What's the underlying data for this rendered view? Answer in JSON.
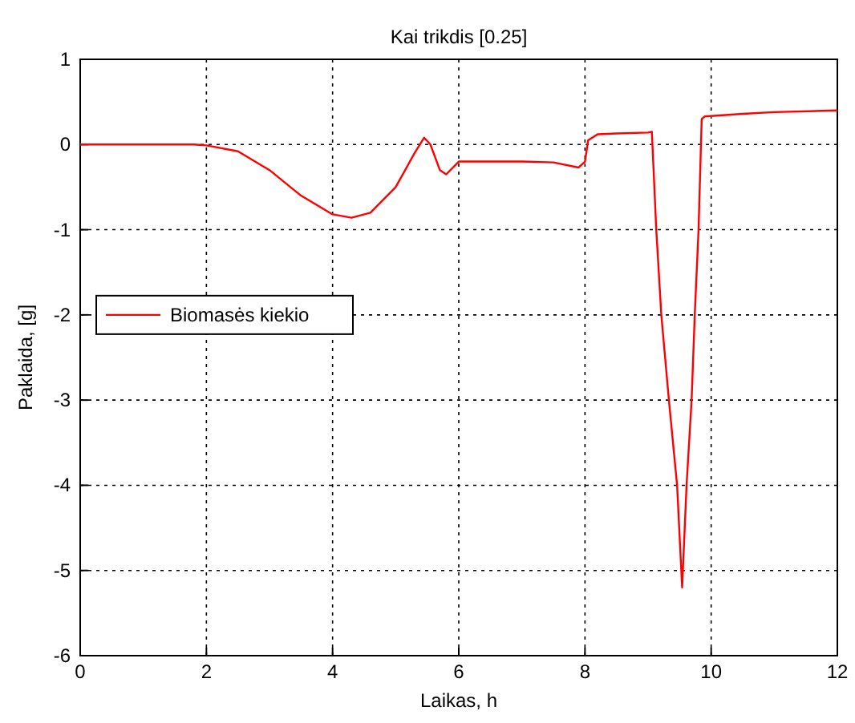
{
  "chart_data": {
    "type": "line",
    "title": "Kai trikdis [0.25]",
    "xlabel": "Laikas, h",
    "ylabel": "Paklaida, [g]",
    "xlim": [
      0,
      12
    ],
    "ylim": [
      -6,
      1
    ],
    "xticks": [
      0,
      2,
      4,
      6,
      8,
      10,
      12
    ],
    "yticks": [
      -6,
      -5,
      -4,
      -3,
      -2,
      -1,
      0,
      1
    ],
    "grid": true,
    "legend": "left",
    "series": [
      {
        "name": "Biomasės kiekio",
        "color": "#ff0000",
        "x": [
          0,
          1.8,
          2,
          2.5,
          3,
          3.5,
          4,
          4.3,
          4.6,
          5,
          5.3,
          5.45,
          5.55,
          5.7,
          5.8,
          6,
          6.5,
          7,
          7.5,
          7.9,
          8,
          8.05,
          8.2,
          8.5,
          9,
          9.06,
          9.13,
          9.21,
          9.33,
          9.46,
          9.54,
          9.61,
          9.69,
          9.74,
          9.8,
          9.85,
          9.9,
          10.5,
          11,
          12
        ],
        "values": [
          0,
          0,
          -0.01,
          -0.08,
          -0.3,
          -0.6,
          -0.82,
          -0.86,
          -0.8,
          -0.5,
          -0.1,
          0.08,
          0,
          -0.3,
          -0.35,
          -0.2,
          -0.2,
          -0.2,
          -0.21,
          -0.27,
          -0.2,
          0.05,
          0.12,
          0.13,
          0.14,
          0.15,
          -1,
          -2,
          -3,
          -4,
          -5.2,
          -4,
          -3,
          -2,
          -1,
          0.3,
          0.33,
          0.36,
          0.38,
          0.4
        ]
      }
    ]
  }
}
